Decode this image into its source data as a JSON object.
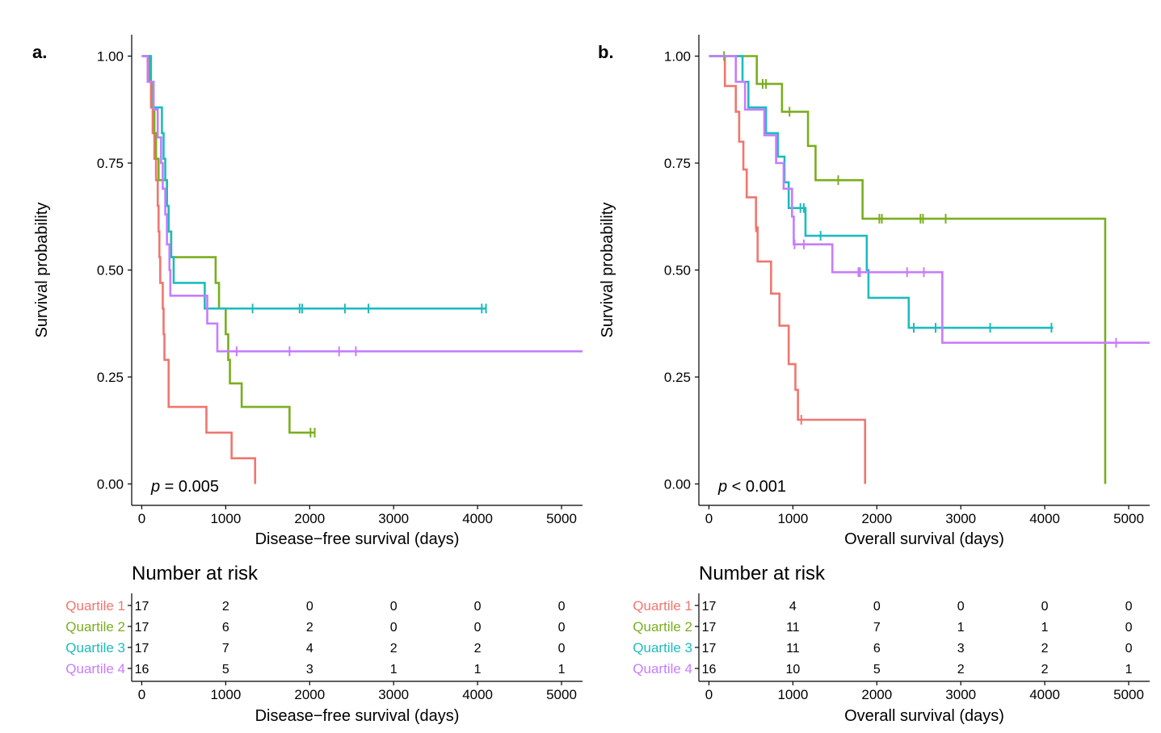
{
  "colors": {
    "Quartile 1": "#F0766E",
    "Quartile 2": "#7AAE1F",
    "Quartile 3": "#1DBBBF",
    "Quartile 4": "#C77CFF",
    "axis": "#000000"
  },
  "chart_data": [
    {
      "type": "line",
      "panel_label": "a.",
      "xlabel": "Disease−free survival (days)",
      "ylabel": "Survival probability",
      "xlim": [
        -120,
        5250
      ],
      "ylim": [
        -0.05,
        1.05
      ],
      "x_ticks": [
        0,
        1000,
        2000,
        3000,
        4000,
        5000
      ],
      "x_tick_labels": [
        "0",
        "1000",
        "2000",
        "3000",
        "4000",
        "5000"
      ],
      "y_ticks": [
        0,
        0.25,
        0.5,
        0.75,
        1.0
      ],
      "y_tick_labels": [
        "0.00",
        "0.25",
        "0.50",
        "0.75",
        "1.00"
      ],
      "p_value": {
        "prefix": "p",
        "text": " = 0.005"
      },
      "series": [
        {
          "name": "Quartile 1",
          "steps": [
            [
              0,
              1.0
            ],
            [
              90,
              0.94
            ],
            [
              110,
              0.88
            ],
            [
              130,
              0.82
            ],
            [
              150,
              0.76
            ],
            [
              170,
              0.71
            ],
            [
              190,
              0.65
            ],
            [
              200,
              0.59
            ],
            [
              210,
              0.53
            ],
            [
              220,
              0.47
            ],
            [
              250,
              0.41
            ],
            [
              260,
              0.35
            ],
            [
              270,
              0.29
            ],
            [
              320,
              0.18
            ],
            [
              770,
              0.12
            ],
            [
              1070,
              0.06
            ],
            [
              1350,
              0.0
            ]
          ],
          "end": 1350,
          "censor": []
        },
        {
          "name": "Quartile 2",
          "steps": [
            [
              0,
              1.0
            ],
            [
              100,
              0.94
            ],
            [
              130,
              0.88
            ],
            [
              150,
              0.82
            ],
            [
              170,
              0.76
            ],
            [
              200,
              0.71
            ],
            [
              300,
              0.65
            ],
            [
              320,
              0.59
            ],
            [
              350,
              0.53
            ],
            [
              880,
              0.47
            ],
            [
              920,
              0.41
            ],
            [
              1000,
              0.35
            ],
            [
              1030,
              0.29
            ],
            [
              1050,
              0.235
            ],
            [
              1190,
              0.18
            ],
            [
              1760,
              0.12
            ]
          ],
          "end": 2070,
          "censor": [
            2010,
            2060
          ]
        },
        {
          "name": "Quartile 3",
          "steps": [
            [
              0,
              1.0
            ],
            [
              110,
              0.94
            ],
            [
              140,
              0.88
            ],
            [
              240,
              0.82
            ],
            [
              260,
              0.76
            ],
            [
              280,
              0.71
            ],
            [
              300,
              0.65
            ],
            [
              320,
              0.59
            ],
            [
              350,
              0.53
            ],
            [
              380,
              0.47
            ],
            [
              750,
              0.41
            ]
          ],
          "end": 4100,
          "censor": [
            1320,
            1880,
            1910,
            2420,
            2700,
            4050,
            4100
          ]
        },
        {
          "name": "Quartile 4",
          "steps": [
            [
              0,
              1.0
            ],
            [
              70,
              0.94
            ],
            [
              140,
              0.875
            ],
            [
              190,
              0.81
            ],
            [
              230,
              0.75
            ],
            [
              250,
              0.69
            ],
            [
              280,
              0.63
            ],
            [
              300,
              0.56
            ],
            [
              330,
              0.5
            ],
            [
              340,
              0.44
            ],
            [
              780,
              0.375
            ],
            [
              900,
              0.31
            ]
          ],
          "end": 5250,
          "censor": [
            1130,
            1760,
            2350,
            2550
          ]
        }
      ],
      "risk_table": {
        "title": "Number at risk",
        "xlabel": "Disease−free survival (days)",
        "times": [
          0,
          1000,
          2000,
          3000,
          4000,
          5000
        ],
        "time_labels": [
          "0",
          "1000",
          "2000",
          "3000",
          "4000",
          "5000"
        ],
        "rows": [
          {
            "name": "Quartile 1",
            "values": [
              "17",
              "2",
              "0",
              "0",
              "0",
              "0"
            ]
          },
          {
            "name": "Quartile 2",
            "values": [
              "17",
              "6",
              "2",
              "0",
              "0",
              "0"
            ]
          },
          {
            "name": "Quartile 3",
            "values": [
              "17",
              "7",
              "4",
              "2",
              "2",
              "0"
            ]
          },
          {
            "name": "Quartile 4",
            "values": [
              "16",
              "5",
              "3",
              "1",
              "1",
              "1"
            ]
          }
        ]
      }
    },
    {
      "type": "line",
      "panel_label": "b.",
      "xlabel": "Overall survival (days)",
      "ylabel": "Survival probability",
      "xlim": [
        -120,
        5250
      ],
      "ylim": [
        -0.05,
        1.05
      ],
      "x_ticks": [
        0,
        1000,
        2000,
        3000,
        4000,
        5000
      ],
      "x_tick_labels": [
        "0",
        "1000",
        "2000",
        "3000",
        "4000",
        "5000"
      ],
      "y_ticks": [
        0,
        0.25,
        0.5,
        0.75,
        1.0
      ],
      "y_tick_labels": [
        "0.00",
        "0.25",
        "0.50",
        "0.75",
        "1.00"
      ],
      "p_value": {
        "prefix": "p",
        "text": " < 0.001"
      },
      "series": [
        {
          "name": "Quartile 1",
          "steps": [
            [
              0,
              1.0
            ],
            [
              190,
              0.93
            ],
            [
              320,
              0.87
            ],
            [
              360,
              0.8
            ],
            [
              410,
              0.735
            ],
            [
              450,
              0.67
            ],
            [
              560,
              0.6
            ],
            [
              580,
              0.52
            ],
            [
              740,
              0.445
            ],
            [
              840,
              0.37
            ],
            [
              950,
              0.28
            ],
            [
              1030,
              0.22
            ],
            [
              1060,
              0.15
            ],
            [
              1860,
              0.0
            ]
          ],
          "end": 1860,
          "censor": [
            560,
            1100
          ]
        },
        {
          "name": "Quartile 2",
          "steps": [
            [
              0,
              1.0
            ],
            [
              570,
              0.935
            ],
            [
              870,
              0.87
            ],
            [
              1180,
              0.79
            ],
            [
              1270,
              0.71
            ],
            [
              1830,
              0.62
            ],
            [
              4720,
              0.0
            ]
          ],
          "end": 4720,
          "censor": [
            180,
            640,
            680,
            960,
            1540,
            2030,
            2060,
            2520,
            2550,
            2820
          ]
        },
        {
          "name": "Quartile 3",
          "steps": [
            [
              0,
              1.0
            ],
            [
              400,
              0.94
            ],
            [
              470,
              0.88
            ],
            [
              680,
              0.82
            ],
            [
              820,
              0.765
            ],
            [
              900,
              0.705
            ],
            [
              950,
              0.645
            ],
            [
              1150,
              0.58
            ],
            [
              1880,
              0.5
            ],
            [
              1900,
              0.435
            ],
            [
              2380,
              0.365
            ]
          ],
          "end": 4100,
          "censor": [
            1090,
            1130,
            1330,
            2440,
            2700,
            3350,
            4080
          ]
        },
        {
          "name": "Quartile 4",
          "steps": [
            [
              0,
              1.0
            ],
            [
              320,
              0.94
            ],
            [
              430,
              0.875
            ],
            [
              660,
              0.815
            ],
            [
              800,
              0.75
            ],
            [
              890,
              0.69
            ],
            [
              990,
              0.625
            ],
            [
              1010,
              0.56
            ],
            [
              1470,
              0.495
            ],
            [
              2780,
              0.33
            ]
          ],
          "end": 5250,
          "censor": [
            1020,
            1130,
            1780,
            1800,
            2360,
            2560,
            4850
          ]
        }
      ],
      "risk_table": {
        "title": "Number at risk",
        "xlabel": "Overall survival (days)",
        "times": [
          0,
          1000,
          2000,
          3000,
          4000,
          5000
        ],
        "time_labels": [
          "0",
          "1000",
          "2000",
          "3000",
          "4000",
          "5000"
        ],
        "rows": [
          {
            "name": "Quartile 1",
            "values": [
              "17",
              "4",
              "0",
              "0",
              "0",
              "0"
            ]
          },
          {
            "name": "Quartile 2",
            "values": [
              "17",
              "11",
              "7",
              "1",
              "1",
              "0"
            ]
          },
          {
            "name": "Quartile 3",
            "values": [
              "17",
              "11",
              "6",
              "3",
              "2",
              "0"
            ]
          },
          {
            "name": "Quartile 4",
            "values": [
              "16",
              "10",
              "5",
              "2",
              "2",
              "1"
            ]
          }
        ]
      }
    }
  ]
}
